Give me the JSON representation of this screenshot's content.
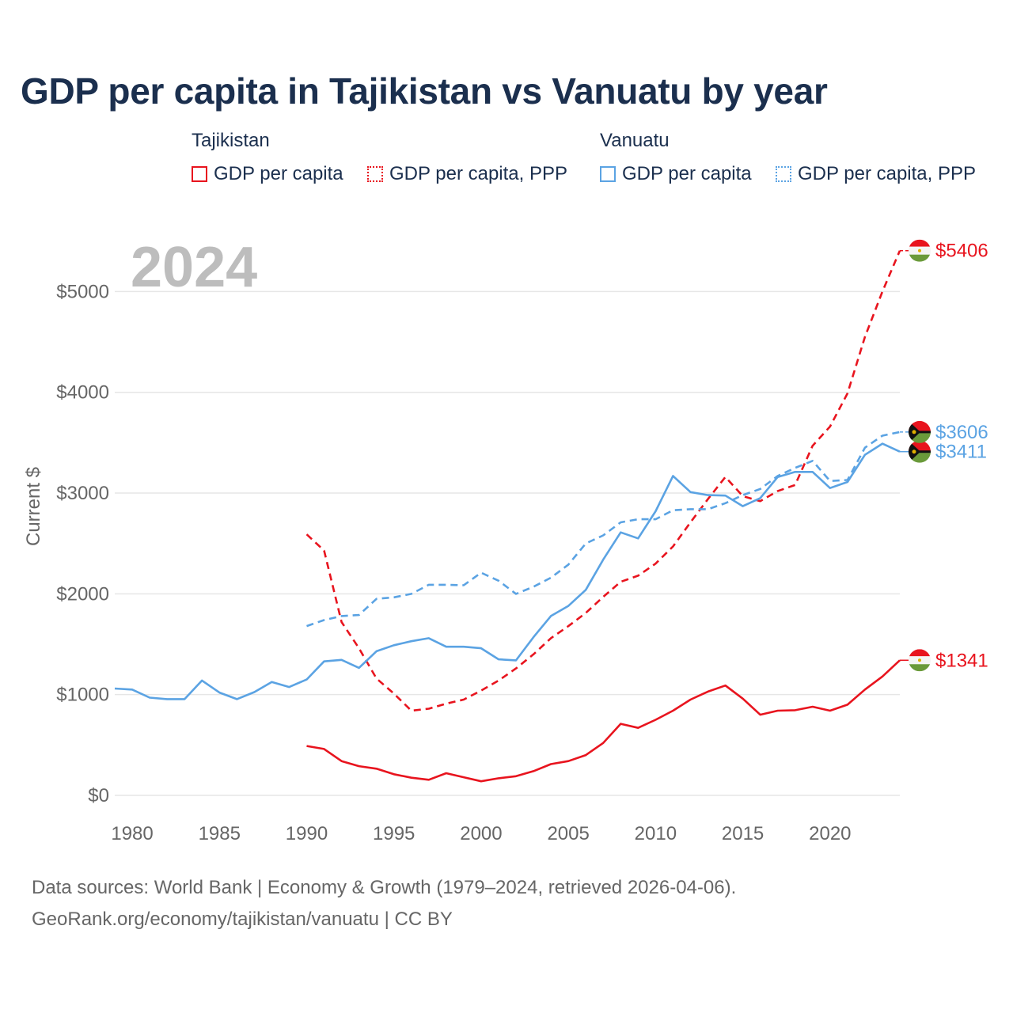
{
  "title": "GDP per capita in Tajikistan vs Vanuatu by year",
  "legend": {
    "groups": [
      {
        "name": "Tajikistan",
        "items": [
          "GDP per capita",
          "GDP per capita, PPP"
        ]
      },
      {
        "name": "Vanuatu",
        "items": [
          "GDP per capita",
          "GDP per capita, PPP"
        ]
      }
    ]
  },
  "colors": {
    "tajikistan": "#e8141e",
    "vanuatu": "#5ba3e3",
    "grid": "#e6e6e6",
    "axis_text": "#666666",
    "year_label": "#bdbdbd"
  },
  "chart_data": {
    "type": "line",
    "year_label": "2024",
    "ylabel": "Current $",
    "ylim": [
      0,
      5600
    ],
    "xlim": [
      1979,
      2024
    ],
    "y_ticks": [
      0,
      1000,
      2000,
      3000,
      4000,
      5000
    ],
    "y_tick_labels": [
      "$0",
      "$1000",
      "$2000",
      "$3000",
      "$4000",
      "$5000"
    ],
    "x_ticks": [
      1980,
      1985,
      1990,
      1995,
      2000,
      2005,
      2010,
      2015,
      2020
    ],
    "x_tick_labels": [
      "1980",
      "1985",
      "1990",
      "1995",
      "2000",
      "2005",
      "2010",
      "2015",
      "2020"
    ],
    "series": [
      {
        "name": "Tajikistan GDP per capita",
        "country": "Tajikistan",
        "style": "solid",
        "color": "#e8141e",
        "x": [
          1990,
          1991,
          1992,
          1993,
          1994,
          1995,
          1996,
          1997,
          1998,
          1999,
          2000,
          2001,
          2002,
          2003,
          2004,
          2005,
          2006,
          2007,
          2008,
          2009,
          2010,
          2011,
          2012,
          2013,
          2014,
          2015,
          2016,
          2017,
          2018,
          2019,
          2020,
          2021,
          2022,
          2023,
          2024
        ],
        "values": [
          490,
          460,
          340,
          290,
          265,
          210,
          175,
          155,
          220,
          180,
          140,
          170,
          190,
          240,
          310,
          340,
          400,
          520,
          710,
          670,
          750,
          840,
          950,
          1030,
          1090,
          960,
          800,
          840,
          845,
          880,
          840,
          900,
          1050,
          1180,
          1341
        ],
        "end_label": "$1341"
      },
      {
        "name": "Tajikistan GDP per capita, PPP",
        "country": "Tajikistan",
        "style": "dashed",
        "color": "#e8141e",
        "x": [
          1990,
          1991,
          1992,
          1993,
          1994,
          1995,
          1996,
          1997,
          1998,
          1999,
          2000,
          2001,
          2002,
          2003,
          2004,
          2005,
          2006,
          2007,
          2008,
          2009,
          2010,
          2011,
          2012,
          2013,
          2014,
          2015,
          2016,
          2017,
          2018,
          2019,
          2020,
          2021,
          2022,
          2023,
          2024
        ],
        "values": [
          2590,
          2430,
          1720,
          1460,
          1160,
          1010,
          840,
          860,
          910,
          950,
          1040,
          1140,
          1260,
          1400,
          1560,
          1680,
          1810,
          1970,
          2120,
          2180,
          2300,
          2470,
          2710,
          2940,
          3160,
          2970,
          2920,
          3020,
          3080,
          3470,
          3660,
          3990,
          4550,
          5000,
          5406
        ],
        "end_label": "$5406"
      },
      {
        "name": "Vanuatu GDP per capita",
        "country": "Vanuatu",
        "style": "solid",
        "color": "#5ba3e3",
        "x": [
          1979,
          1980,
          1981,
          1982,
          1983,
          1984,
          1985,
          1986,
          1987,
          1988,
          1989,
          1990,
          1991,
          1992,
          1993,
          1994,
          1995,
          1996,
          1997,
          1998,
          1999,
          2000,
          2001,
          2002,
          2003,
          2004,
          2005,
          2006,
          2007,
          2008,
          2009,
          2010,
          2011,
          2012,
          2013,
          2014,
          2015,
          2016,
          2017,
          2018,
          2019,
          2020,
          2021,
          2022,
          2023,
          2024
        ],
        "values": [
          1060,
          1050,
          970,
          955,
          955,
          1140,
          1020,
          955,
          1025,
          1125,
          1075,
          1150,
          1330,
          1345,
          1265,
          1430,
          1490,
          1530,
          1560,
          1475,
          1475,
          1460,
          1350,
          1340,
          1570,
          1780,
          1880,
          2040,
          2340,
          2610,
          2550,
          2820,
          3170,
          3010,
          2980,
          2975,
          2870,
          2950,
          3160,
          3210,
          3210,
          3050,
          3110,
          3380,
          3490,
          3411
        ],
        "end_label": "$3411"
      },
      {
        "name": "Vanuatu GDP per capita, PPP",
        "country": "Vanuatu",
        "style": "dashed",
        "color": "#5ba3e3",
        "x": [
          1990,
          1991,
          1992,
          1993,
          1994,
          1995,
          1996,
          1997,
          1998,
          1999,
          2000,
          2001,
          2002,
          2003,
          2004,
          2005,
          2006,
          2007,
          2008,
          2009,
          2010,
          2011,
          2012,
          2013,
          2014,
          2015,
          2016,
          2017,
          2018,
          2019,
          2020,
          2021,
          2022,
          2023,
          2024
        ],
        "values": [
          1680,
          1740,
          1780,
          1790,
          1950,
          1965,
          2000,
          2090,
          2090,
          2085,
          2210,
          2130,
          2000,
          2070,
          2160,
          2290,
          2500,
          2580,
          2710,
          2740,
          2740,
          2830,
          2840,
          2840,
          2900,
          2980,
          3040,
          3170,
          3250,
          3320,
          3120,
          3130,
          3450,
          3570,
          3606
        ],
        "end_label": "$3606"
      }
    ]
  },
  "footer": {
    "line1": "Data sources: World Bank | Economy & Growth (1979–2024, retrieved 2026-04-06).",
    "line2": "GeoRank.org/economy/tajikistan/vanuatu | CC BY"
  }
}
